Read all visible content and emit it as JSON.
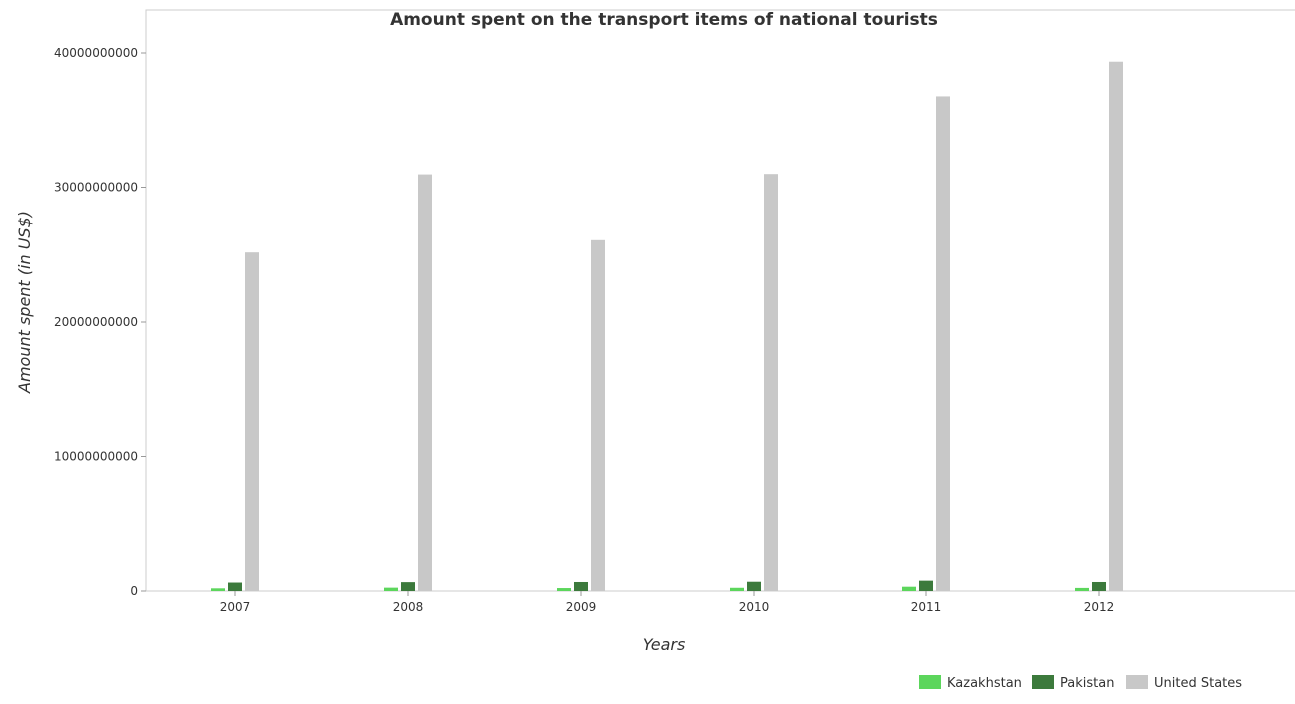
{
  "chart_data": {
    "type": "bar",
    "title": "Amount spent on the transport items of national tourists",
    "xlabel": "Years",
    "ylabel": "Amount spent (in US$)",
    "categories": [
      "2007",
      "2008",
      "2009",
      "2010",
      "2011",
      "2012"
    ],
    "series": [
      {
        "name": "Kazakhstan",
        "color": "#5cd65c",
        "values": [
          200000000,
          250000000,
          220000000,
          240000000,
          320000000,
          230000000
        ]
      },
      {
        "name": "Pakistan",
        "color": "#3c7a3c",
        "values": [
          630000000,
          660000000,
          670000000,
          690000000,
          770000000,
          670000000
        ]
      },
      {
        "name": "United States",
        "color": "#c8c8c8",
        "values": [
          25190000000,
          30960000000,
          26110000000,
          30990000000,
          36770000000,
          39350000000
        ]
      }
    ],
    "yticks": [
      0,
      10000000000,
      20000000000,
      30000000000,
      40000000000
    ],
    "ytick_labels": [
      "0",
      "10000000000",
      "20000000000",
      "30000000000",
      "40000000000"
    ],
    "ylim": [
      0,
      41000000000
    ],
    "grid": false,
    "legend_position": "bottom-right"
  }
}
